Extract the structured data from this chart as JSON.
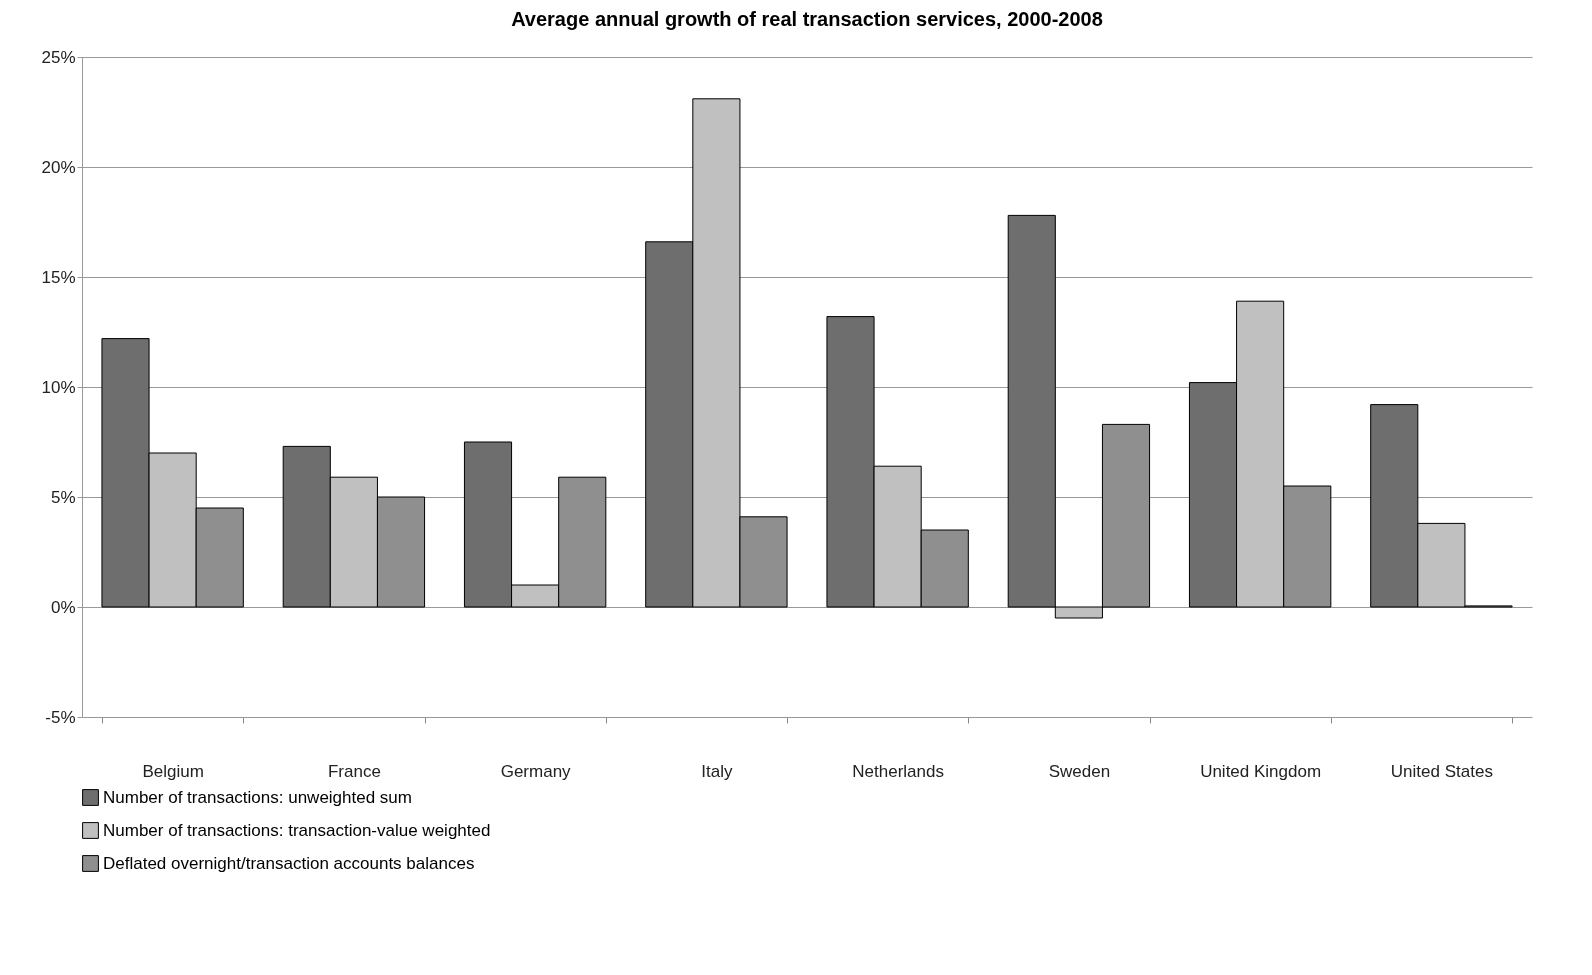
{
  "chart_data": {
    "type": "bar",
    "title": "Average annual growth of real transaction services, 2000-2008",
    "categories": [
      "Belgium",
      "France",
      "Germany",
      "Italy",
      "Netherlands",
      "Sweden",
      "United Kingdom",
      "United States"
    ],
    "series": [
      {
        "name": "Number of transactions: unweighted sum",
        "color": "#6e6e6e",
        "values": [
          12.2,
          7.3,
          7.5,
          16.6,
          13.2,
          17.8,
          10.2,
          9.2
        ]
      },
      {
        "name": "Number of transactions: transaction-value weighted",
        "color": "#c0c0c0",
        "values": [
          7.0,
          5.9,
          1.0,
          23.1,
          6.4,
          -0.5,
          13.9,
          3.8
        ]
      },
      {
        "name": "Deflated overnight/transaction accounts balances",
        "color": "#8f8f8f",
        "values": [
          4.5,
          5.0,
          5.9,
          4.1,
          3.5,
          8.3,
          5.5,
          0.05
        ]
      }
    ],
    "ylim": [
      -5,
      25
    ],
    "yticks": [
      {
        "value": -5,
        "label": "-5%"
      },
      {
        "value": 0,
        "label": "0%"
      },
      {
        "value": 5,
        "label": "5%"
      },
      {
        "value": 10,
        "label": "10%"
      },
      {
        "value": 15,
        "label": "15%"
      },
      {
        "value": 20,
        "label": "20%"
      },
      {
        "value": 25,
        "label": "25%"
      }
    ],
    "grid": "y",
    "legend": "bottom"
  }
}
